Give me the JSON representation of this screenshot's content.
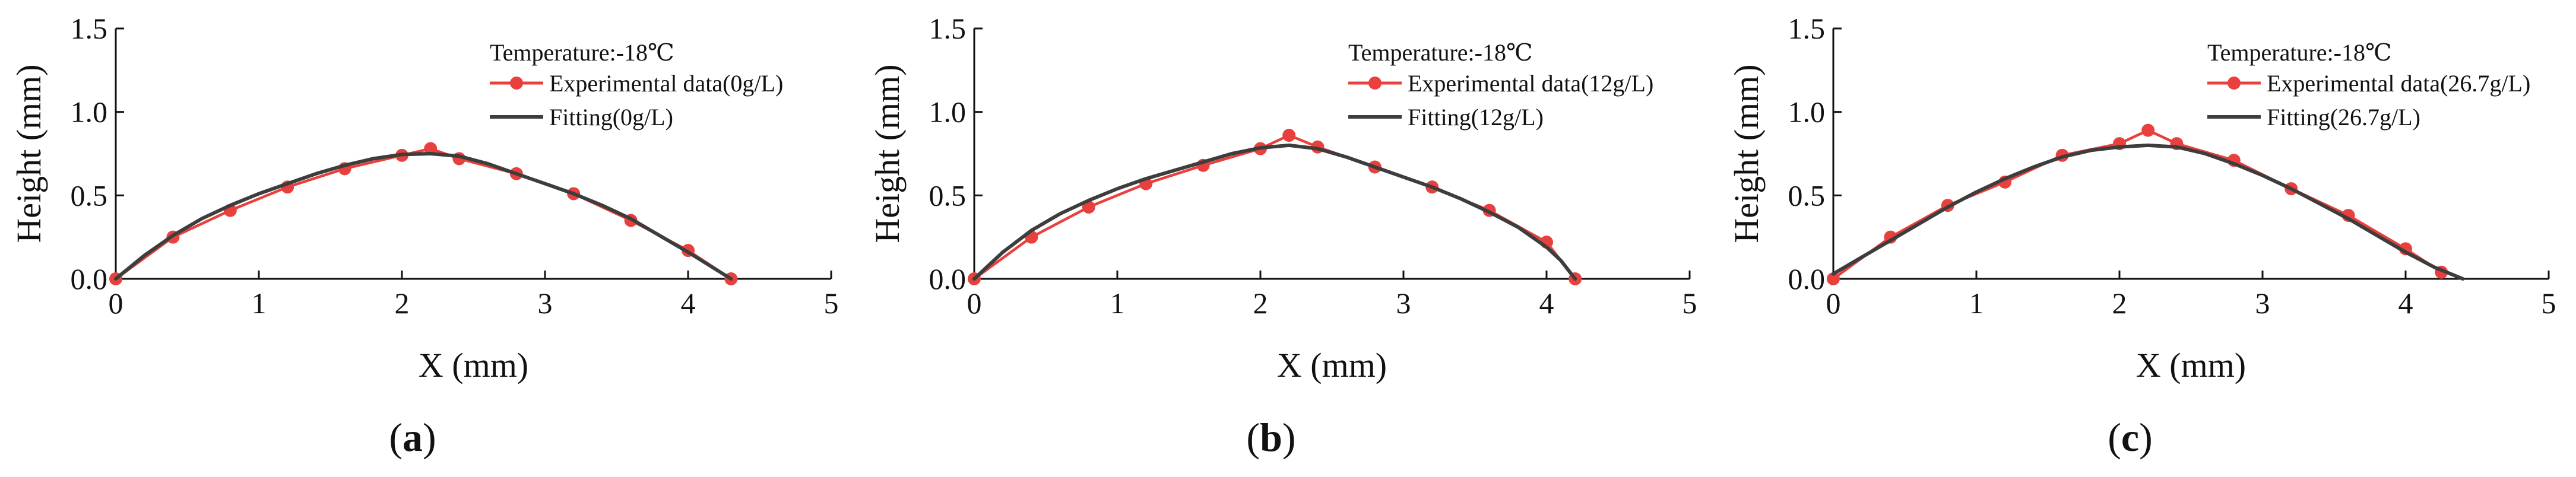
{
  "chart_data": [
    {
      "type": "line",
      "panel_label": "a",
      "xlabel": "X (mm)",
      "ylabel": "Height (mm)",
      "xlim": [
        0,
        5
      ],
      "ylim": [
        0,
        1.5
      ],
      "x_ticks": [
        "0",
        "1",
        "2",
        "3",
        "4",
        "5"
      ],
      "y_ticks": [
        "0.0",
        "0.5",
        "1.0",
        "1.5"
      ],
      "legend_title": "Temperature:-18℃",
      "series": [
        {
          "name": "Experimental data(0g/L)",
          "style": "line-marker",
          "color": "#e8403c",
          "x": [
            0,
            0.4,
            0.8,
            1.2,
            1.6,
            2.0,
            2.2,
            2.4,
            2.8,
            3.2,
            3.6,
            4.0,
            4.3
          ],
          "y": [
            0,
            0.25,
            0.41,
            0.55,
            0.66,
            0.74,
            0.78,
            0.72,
            0.63,
            0.51,
            0.35,
            0.17,
            0
          ]
        },
        {
          "name": "Fitting(0g/L)",
          "style": "line",
          "color": "#3d3d3d",
          "x": [
            0,
            0.2,
            0.4,
            0.6,
            0.8,
            1.0,
            1.2,
            1.4,
            1.6,
            1.8,
            2.0,
            2.2,
            2.4,
            2.6,
            2.8,
            3.0,
            3.2,
            3.4,
            3.6,
            3.8,
            4.0,
            4.15,
            4.3
          ],
          "y": [
            0,
            0.14,
            0.26,
            0.36,
            0.44,
            0.51,
            0.57,
            0.63,
            0.68,
            0.72,
            0.745,
            0.75,
            0.735,
            0.69,
            0.63,
            0.57,
            0.51,
            0.44,
            0.36,
            0.26,
            0.16,
            0.08,
            0
          ]
        }
      ]
    },
    {
      "type": "line",
      "panel_label": "b",
      "xlabel": "X (mm)",
      "ylabel": "Height (mm)",
      "xlim": [
        0,
        5
      ],
      "ylim": [
        0,
        1.5
      ],
      "x_ticks": [
        "0",
        "1",
        "2",
        "3",
        "4",
        "5"
      ],
      "y_ticks": [
        "0.0",
        "0.5",
        "1.0",
        "1.5"
      ],
      "legend_title": "Temperature:-18℃",
      "series": [
        {
          "name": "Experimental data(12g/L)",
          "style": "line-marker",
          "color": "#e8403c",
          "x": [
            0,
            0.4,
            0.8,
            1.2,
            1.6,
            2.0,
            2.2,
            2.4,
            2.8,
            3.2,
            3.6,
            4.0,
            4.2
          ],
          "y": [
            0,
            0.25,
            0.43,
            0.57,
            0.68,
            0.78,
            0.86,
            0.79,
            0.67,
            0.55,
            0.41,
            0.22,
            0
          ]
        },
        {
          "name": "Fitting(12g/L)",
          "style": "line",
          "color": "#3d3d3d",
          "x": [
            0,
            0.2,
            0.4,
            0.6,
            0.8,
            1.0,
            1.2,
            1.4,
            1.6,
            1.8,
            2.0,
            2.2,
            2.4,
            2.6,
            2.8,
            3.0,
            3.2,
            3.4,
            3.6,
            3.8,
            4.0,
            4.1,
            4.2
          ],
          "y": [
            0,
            0.16,
            0.29,
            0.39,
            0.47,
            0.54,
            0.6,
            0.65,
            0.7,
            0.75,
            0.785,
            0.8,
            0.78,
            0.73,
            0.67,
            0.61,
            0.55,
            0.48,
            0.4,
            0.31,
            0.19,
            0.11,
            0
          ]
        }
      ]
    },
    {
      "type": "line",
      "panel_label": "c",
      "xlabel": "X (mm)",
      "ylabel": "Height (mm)",
      "xlim": [
        0,
        5
      ],
      "ylim": [
        0,
        1.5
      ],
      "x_ticks": [
        "0",
        "1",
        "2",
        "3",
        "4",
        "5"
      ],
      "y_ticks": [
        "0.0",
        "0.5",
        "1.0",
        "1.5"
      ],
      "legend_title": "Temperature:-18℃",
      "series": [
        {
          "name": "Experimental data(26.7g/L)",
          "style": "line-marker",
          "color": "#e8403c",
          "x": [
            0,
            0.4,
            0.8,
            1.2,
            1.6,
            2.0,
            2.2,
            2.4,
            2.8,
            3.2,
            3.6,
            4.0,
            4.25
          ],
          "y": [
            0,
            0.25,
            0.44,
            0.58,
            0.74,
            0.81,
            0.89,
            0.81,
            0.71,
            0.54,
            0.38,
            0.18,
            0.04
          ]
        },
        {
          "name": "Fitting(26.7g/L)",
          "style": "line",
          "color": "#3d3d3d",
          "x": [
            0,
            0.2,
            0.4,
            0.6,
            0.8,
            1.0,
            1.2,
            1.4,
            1.6,
            1.8,
            2.0,
            2.2,
            2.4,
            2.6,
            2.8,
            3.0,
            3.2,
            3.4,
            3.6,
            3.8,
            4.0,
            4.2,
            4.4
          ],
          "y": [
            0.03,
            0.13,
            0.23,
            0.33,
            0.43,
            0.52,
            0.6,
            0.67,
            0.73,
            0.77,
            0.79,
            0.8,
            0.79,
            0.75,
            0.69,
            0.62,
            0.54,
            0.45,
            0.36,
            0.26,
            0.16,
            0.07,
            0
          ]
        }
      ]
    }
  ]
}
